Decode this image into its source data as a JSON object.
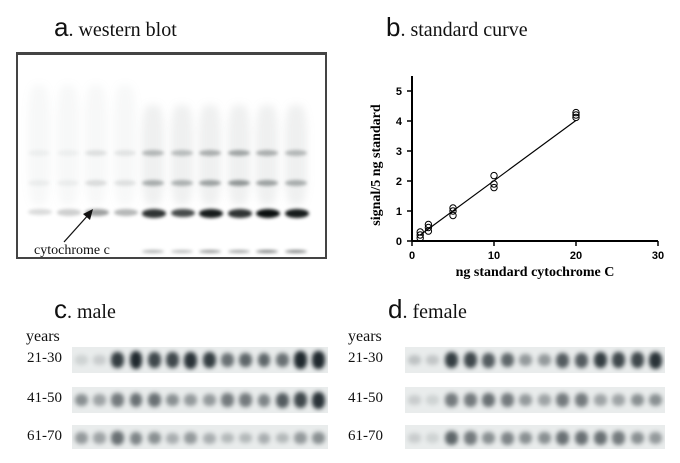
{
  "panels": {
    "a": {
      "letter": "a",
      "title": ". western blot",
      "annotation": "cytochrome c",
      "lane_count": 10
    },
    "b": {
      "letter": "b",
      "title": ". standard curve"
    },
    "c": {
      "letter": "c",
      "title": ". male",
      "years_label": "years",
      "rows": [
        {
          "label": "21-30",
          "intensities": [
            0.12,
            0.15,
            0.85,
            0.95,
            0.8,
            0.8,
            0.9,
            0.85,
            0.6,
            0.65,
            0.65,
            0.6,
            0.95,
            0.95
          ]
        },
        {
          "label": "41-50",
          "intensities": [
            0.45,
            0.35,
            0.55,
            0.6,
            0.6,
            0.45,
            0.4,
            0.4,
            0.55,
            0.55,
            0.5,
            0.7,
            0.8,
            0.9
          ]
        },
        {
          "label": "61-70",
          "intensities": [
            0.4,
            0.35,
            0.6,
            0.5,
            0.45,
            0.3,
            0.4,
            0.3,
            0.25,
            0.25,
            0.3,
            0.25,
            0.4,
            0.45
          ]
        }
      ]
    },
    "d": {
      "letter": "d",
      "title": ". female",
      "years_label": "years",
      "rows": [
        {
          "label": "21-30",
          "intensities": [
            0.2,
            0.18,
            0.85,
            0.8,
            0.7,
            0.65,
            0.4,
            0.4,
            0.7,
            0.7,
            0.85,
            0.8,
            0.8,
            0.9
          ]
        },
        {
          "label": "41-50",
          "intensities": [
            0.15,
            0.12,
            0.55,
            0.55,
            0.6,
            0.55,
            0.4,
            0.35,
            0.55,
            0.55,
            0.35,
            0.35,
            0.45,
            0.45
          ]
        },
        {
          "label": "61-70",
          "intensities": [
            0.15,
            0.12,
            0.65,
            0.55,
            0.45,
            0.5,
            0.45,
            0.45,
            0.6,
            0.6,
            0.6,
            0.55,
            0.45,
            0.4
          ]
        }
      ]
    }
  },
  "chart_data": {
    "type": "scatter",
    "title": "standard curve",
    "xlabel": "ng standard cytochrome C",
    "ylabel": "signal/5 ng standard",
    "xlim": [
      0,
      30
    ],
    "ylim": [
      0,
      5.5
    ],
    "x_ticks": [
      0,
      10,
      20,
      30
    ],
    "y_ticks": [
      0,
      1,
      2,
      3,
      4,
      5
    ],
    "grid": false,
    "marker": "open-circle",
    "series": [
      {
        "name": "standard",
        "points": [
          [
            1,
            0.1
          ],
          [
            1,
            0.2
          ],
          [
            1,
            0.3
          ],
          [
            2,
            0.33
          ],
          [
            2,
            0.45
          ],
          [
            2,
            0.55
          ],
          [
            5,
            0.85
          ],
          [
            5,
            1.0
          ],
          [
            5,
            1.1
          ],
          [
            10,
            1.78
          ],
          [
            10,
            1.9
          ],
          [
            10,
            2.18
          ],
          [
            20,
            4.12
          ],
          [
            20,
            4.2
          ],
          [
            20,
            4.28
          ]
        ]
      }
    ],
    "fit_line": {
      "x": [
        1,
        20
      ],
      "y": [
        0.2,
        4.02
      ]
    }
  }
}
